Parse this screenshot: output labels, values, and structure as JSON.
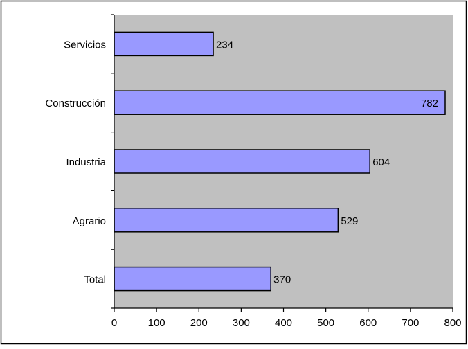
{
  "chart_data": {
    "type": "bar",
    "orientation": "horizontal",
    "categories": [
      "Servicios",
      "Construcción",
      "Industria",
      "Agrario",
      "Total"
    ],
    "values": [
      234,
      782,
      604,
      529,
      370
    ],
    "data_labels": [
      "234",
      "782",
      "604",
      "529",
      "370"
    ],
    "xlim": [
      0,
      800
    ],
    "x_ticks": [
      "0",
      "100",
      "200",
      "300",
      "400",
      "500",
      "600",
      "700",
      "800"
    ],
    "title": "",
    "xlabel": "",
    "ylabel": "",
    "grid": false,
    "legend": "none",
    "colors": {
      "bar_fill": "#9999ff",
      "bar_stroke": "#000000",
      "plot_background": "#c0c0c0",
      "chart_border": "#000000",
      "text": "#000000"
    }
  }
}
